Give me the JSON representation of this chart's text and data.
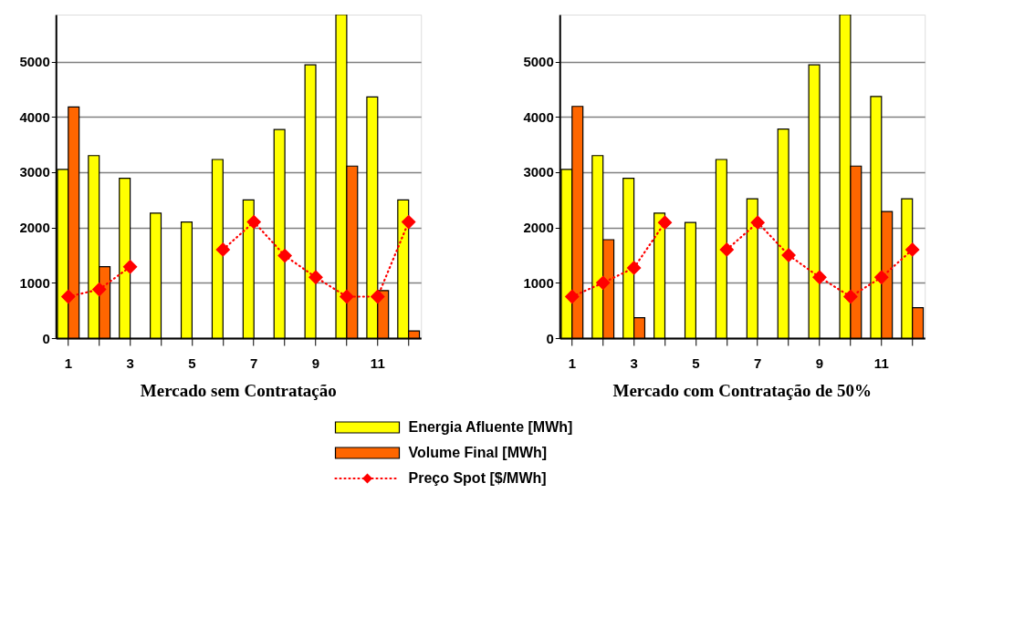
{
  "chart_data": [
    {
      "type": "bar",
      "title": "Mercado sem Contratação",
      "categories": [
        "1",
        null,
        "3",
        null,
        "5",
        null,
        "7",
        null,
        "9",
        null,
        "11",
        null
      ],
      "ylim": [
        0,
        5850
      ],
      "yticks": [
        0,
        1000,
        2000,
        3000,
        4000,
        5000
      ],
      "grid": "y",
      "legend": "bottom",
      "series": [
        {
          "name": "Energia Afluente [MWh]",
          "color": "#ffff00",
          "values": [
            3050,
            3300,
            2890,
            2260,
            2100,
            3230,
            2500,
            3770,
            4940,
            5850,
            4360,
            2500
          ]
        },
        {
          "name": "Volume Final [MWh]",
          "color": "#ff6600",
          "values": [
            4180,
            1290,
            null,
            null,
            null,
            null,
            null,
            null,
            null,
            3110,
            860,
            130
          ]
        },
        {
          "name": "Preço Spot [$/MWh]",
          "color": "#ff0000",
          "type": "line",
          "marker": "diamond",
          "line_style": "dotted",
          "values": [
            750,
            880,
            1290,
            null,
            null,
            1600,
            2100,
            1490,
            1100,
            750,
            750,
            2100
          ]
        }
      ]
    },
    {
      "type": "bar",
      "title": "Mercado com Contratação de 50%",
      "categories": [
        "1",
        null,
        "3",
        null,
        "5",
        null,
        "7",
        null,
        "9",
        null,
        "11",
        null
      ],
      "ylim": [
        0,
        5850
      ],
      "yticks": [
        0,
        1000,
        2000,
        3000,
        4000,
        5000
      ],
      "grid": "y",
      "legend": "bottom",
      "series": [
        {
          "name": "Energia Afluente [MWh]",
          "color": "#ffff00",
          "values": [
            3050,
            3300,
            2890,
            2260,
            2090,
            3230,
            2520,
            3780,
            4940,
            5850,
            4370,
            2520
          ]
        },
        {
          "name": "Volume Final [MWh]",
          "color": "#ff6600",
          "values": [
            4190,
            1780,
            370,
            null,
            null,
            null,
            null,
            null,
            null,
            3110,
            2290,
            550
          ]
        },
        {
          "name": "Preço Spot [$/MWh]",
          "color": "#ff0000",
          "type": "line",
          "marker": "diamond",
          "line_style": "dotted",
          "values": [
            750,
            1000,
            1270,
            2090,
            null,
            1600,
            2090,
            1500,
            1100,
            750,
            1100,
            1600
          ]
        }
      ]
    }
  ]
}
